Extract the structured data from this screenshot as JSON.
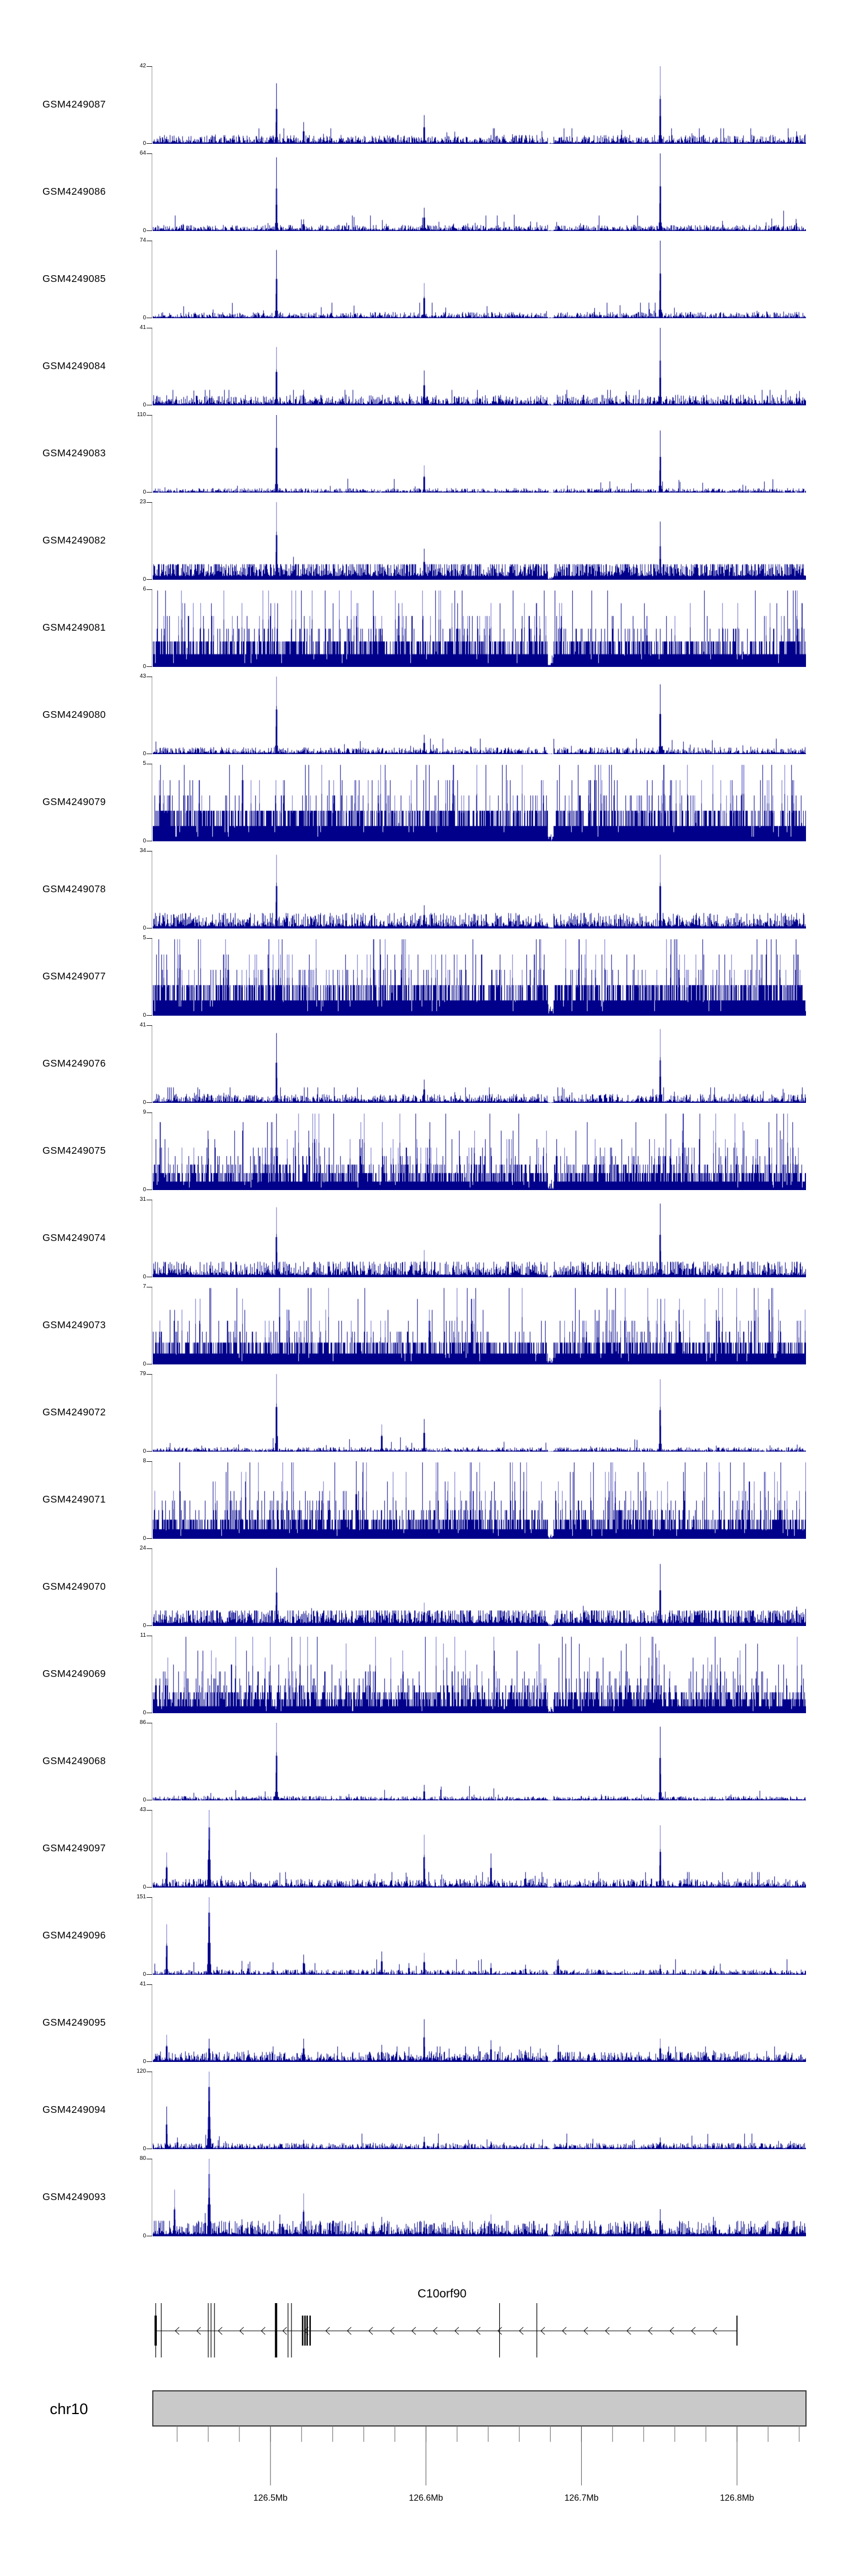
{
  "figure": {
    "title": "",
    "region_label": "chr10:126.42-126.84Mb"
  },
  "colors": {
    "signal": "#00008b",
    "signal_light": "#6b6bcc",
    "axis_line": "#999999",
    "axis_tick": "#1a1a1a",
    "ideogram_fill": "#c9c9c9",
    "ideogram_border": "#3a3a3a",
    "ruler_tick": "#7d7d7d",
    "text": "#000000"
  },
  "chart_data": {
    "type": "area",
    "subtype": "genome-coverage-tracks",
    "genome": {
      "chromosome": "chr10",
      "xlim_mb": [
        126.42436,
        126.84436
      ],
      "axis_ticks_mb": [
        126.5,
        126.6,
        126.7,
        126.8
      ],
      "axis_tick_labels": [
        "126.5Mb",
        "126.6Mb",
        "126.7Mb",
        "126.8Mb"
      ],
      "minor_tick_start_mb": 126.44,
      "minor_tick_step_mb": 0.02,
      "minor_tick_count": 21,
      "dip_mb": 126.68
    },
    "tracks": [
      {
        "sample": "GSM4249087",
        "ymax": 42,
        "ymin": 0,
        "style": "sparse",
        "noise_fill": 0.05,
        "peaks": [
          {
            "mb": 126.5036,
            "h": 0.78
          },
          {
            "mb": 126.521,
            "h": 0.28
          },
          {
            "mb": 126.5986,
            "h": 0.37
          },
          {
            "mb": 126.7504,
            "h": 1.0
          },
          {
            "mb": 126.8381,
            "h": 0.16
          }
        ]
      },
      {
        "sample": "GSM4249086",
        "ymax": 64,
        "ymin": 0,
        "style": "sparse",
        "noise_fill": 0.035,
        "peaks": [
          {
            "mb": 126.5036,
            "h": 0.95
          },
          {
            "mb": 126.521,
            "h": 0.15
          },
          {
            "mb": 126.5986,
            "h": 0.3
          },
          {
            "mb": 126.7504,
            "h": 1.0
          },
          {
            "mb": 126.8381,
            "h": 0.1
          }
        ]
      },
      {
        "sample": "GSM4249085",
        "ymax": 74,
        "ymin": 0,
        "style": "sparse",
        "noise_fill": 0.035,
        "peaks": [
          {
            "mb": 126.5036,
            "h": 0.88
          },
          {
            "mb": 126.5986,
            "h": 0.45
          },
          {
            "mb": 126.7504,
            "h": 1.0
          },
          {
            "mb": 126.8381,
            "h": 0.08
          }
        ]
      },
      {
        "sample": "GSM4249084",
        "ymax": 41,
        "ymin": 0,
        "style": "sparse",
        "noise_fill": 0.06,
        "peaks": [
          {
            "mb": 126.5036,
            "h": 0.75
          },
          {
            "mb": 126.521,
            "h": 0.2
          },
          {
            "mb": 126.5986,
            "h": 0.45
          },
          {
            "mb": 126.7504,
            "h": 1.0
          },
          {
            "mb": 126.8381,
            "h": 0.15
          }
        ]
      },
      {
        "sample": "GSM4249083",
        "ymax": 110,
        "ymin": 0,
        "style": "sparse",
        "noise_fill": 0.025,
        "peaks": [
          {
            "mb": 126.5036,
            "h": 1.0
          },
          {
            "mb": 126.5986,
            "h": 0.35
          },
          {
            "mb": 126.7504,
            "h": 0.8
          }
        ]
      },
      {
        "sample": "GSM4249082",
        "ymax": 23,
        "ymin": 0,
        "style": "sparse",
        "noise_fill": 0.16,
        "peaks": [
          {
            "mb": 126.5036,
            "h": 1.0
          },
          {
            "mb": 126.5986,
            "h": 0.4
          },
          {
            "mb": 126.7504,
            "h": 0.75
          },
          {
            "mb": 126.8381,
            "h": 0.2
          }
        ]
      },
      {
        "sample": "GSM4249081",
        "ymax": 6,
        "ymin": 0,
        "style": "dense",
        "noise_fill": 0.35,
        "peaks": []
      },
      {
        "sample": "GSM4249080",
        "ymax": 43,
        "ymin": 0,
        "style": "sparse",
        "noise_fill": 0.04,
        "peaks": [
          {
            "mb": 126.5036,
            "h": 1.0
          },
          {
            "mb": 126.5986,
            "h": 0.25
          },
          {
            "mb": 126.7504,
            "h": 0.9
          }
        ]
      },
      {
        "sample": "GSM4249079",
        "ymax": 5,
        "ymin": 0,
        "style": "dense",
        "noise_fill": 0.4,
        "peaks": []
      },
      {
        "sample": "GSM4249078",
        "ymax": 34,
        "ymin": 0,
        "style": "sparse",
        "noise_fill": 0.09,
        "peaks": [
          {
            "mb": 126.5036,
            "h": 0.95
          },
          {
            "mb": 126.5986,
            "h": 0.3
          },
          {
            "mb": 126.7504,
            "h": 0.95
          },
          {
            "mb": 126.8381,
            "h": 0.2
          }
        ]
      },
      {
        "sample": "GSM4249077",
        "ymax": 5,
        "ymin": 0,
        "style": "dense",
        "noise_fill": 0.45,
        "peaks": []
      },
      {
        "sample": "GSM4249076",
        "ymax": 41,
        "ymin": 0,
        "style": "sparse",
        "noise_fill": 0.05,
        "peaks": [
          {
            "mb": 126.5036,
            "h": 0.9
          },
          {
            "mb": 126.5986,
            "h": 0.3
          },
          {
            "mb": 126.7504,
            "h": 0.95
          }
        ]
      },
      {
        "sample": "GSM4249075",
        "ymax": 9,
        "ymin": 0,
        "style": "dense",
        "noise_fill": 0.35,
        "peaks": []
      },
      {
        "sample": "GSM4249074",
        "ymax": 31,
        "ymin": 0,
        "style": "sparse",
        "noise_fill": 0.1,
        "peaks": [
          {
            "mb": 126.5036,
            "h": 0.9
          },
          {
            "mb": 126.5986,
            "h": 0.35
          },
          {
            "mb": 126.7504,
            "h": 0.95
          },
          {
            "mb": 126.8381,
            "h": 0.2
          }
        ]
      },
      {
        "sample": "GSM4249073",
        "ymax": 7,
        "ymin": 0,
        "style": "dense",
        "noise_fill": 0.4,
        "peaks": []
      },
      {
        "sample": "GSM4249072",
        "ymax": 79,
        "ymin": 0,
        "style": "sparse",
        "noise_fill": 0.025,
        "peaks": [
          {
            "mb": 126.5036,
            "h": 1.0
          },
          {
            "mb": 126.5715,
            "h": 0.35
          },
          {
            "mb": 126.5986,
            "h": 0.42
          },
          {
            "mb": 126.7504,
            "h": 0.93
          }
        ]
      },
      {
        "sample": "GSM4249071",
        "ymax": 8,
        "ymin": 0,
        "style": "dense",
        "noise_fill": 0.35,
        "peaks": [
          {
            "mb": 126.555,
            "h": 1.0
          }
        ]
      },
      {
        "sample": "GSM4249070",
        "ymax": 24,
        "ymin": 0,
        "style": "sparse",
        "noise_fill": 0.13,
        "peaks": [
          {
            "mb": 126.5036,
            "h": 0.75
          },
          {
            "mb": 126.5986,
            "h": 0.3
          },
          {
            "mb": 126.7504,
            "h": 0.8
          },
          {
            "mb": 126.8381,
            "h": 0.25
          }
        ]
      },
      {
        "sample": "GSM4249069",
        "ymax": 11,
        "ymin": 0,
        "style": "dense",
        "noise_fill": 0.3,
        "peaks": []
      },
      {
        "sample": "GSM4249068",
        "ymax": 86,
        "ymin": 0,
        "style": "sparse",
        "noise_fill": 0.025,
        "peaks": [
          {
            "mb": 126.5036,
            "h": 1.0
          },
          {
            "mb": 126.5986,
            "h": 0.2
          },
          {
            "mb": 126.7504,
            "h": 0.95
          }
        ]
      },
      {
        "sample": "GSM4249097",
        "ymax": 43,
        "ymin": 0,
        "style": "sparse",
        "noise_fill": 0.05,
        "peaks": [
          {
            "mb": 126.4332,
            "h": 0.45
          },
          {
            "mb": 126.4604,
            "h": 1.0,
            "w": 1.4
          },
          {
            "mb": 126.4684,
            "h": 0.15
          },
          {
            "mb": 126.5036,
            "h": 0.1
          },
          {
            "mb": 126.5986,
            "h": 0.68
          },
          {
            "mb": 126.6418,
            "h": 0.44
          },
          {
            "mb": 126.664,
            "h": 0.2
          },
          {
            "mb": 126.7504,
            "h": 0.8
          },
          {
            "mb": 126.8053,
            "h": 0.1
          }
        ]
      },
      {
        "sample": "GSM4249096",
        "ymax": 151,
        "ymin": 0,
        "style": "sparse",
        "noise_fill": 0.03,
        "peaks": [
          {
            "mb": 126.4332,
            "h": 0.65
          },
          {
            "mb": 126.4604,
            "h": 1.0,
            "w": 1.5
          },
          {
            "mb": 126.4854,
            "h": 0.14
          },
          {
            "mb": 126.5211,
            "h": 0.26
          },
          {
            "mb": 126.5715,
            "h": 0.3
          },
          {
            "mb": 126.5889,
            "h": 0.15
          },
          {
            "mb": 126.5986,
            "h": 0.28
          },
          {
            "mb": 126.6418,
            "h": 0.15
          },
          {
            "mb": 126.664,
            "h": 0.13
          },
          {
            "mb": 126.6851,
            "h": 0.2
          },
          {
            "mb": 126.7504,
            "h": 0.13
          },
          {
            "mb": 126.7847,
            "h": 0.08
          }
        ]
      },
      {
        "sample": "GSM4249095",
        "ymax": 41,
        "ymin": 0,
        "style": "sparse",
        "noise_fill": 0.06,
        "peaks": [
          {
            "mb": 126.4332,
            "h": 0.35
          },
          {
            "mb": 126.4604,
            "h": 0.3
          },
          {
            "mb": 126.4854,
            "h": 0.15
          },
          {
            "mb": 126.5211,
            "h": 0.3
          },
          {
            "mb": 126.5715,
            "h": 0.22
          },
          {
            "mb": 126.5986,
            "h": 0.55
          },
          {
            "mb": 126.6418,
            "h": 0.28
          },
          {
            "mb": 126.664,
            "h": 0.15
          },
          {
            "mb": 126.6851,
            "h": 0.22
          },
          {
            "mb": 126.7504,
            "h": 0.3
          },
          {
            "mb": 126.7847,
            "h": 0.15
          }
        ]
      },
      {
        "sample": "GSM4249094",
        "ymax": 120,
        "ymin": 0,
        "style": "sparse",
        "noise_fill": 0.035,
        "peaks": [
          {
            "mb": 126.4332,
            "h": 0.55
          },
          {
            "mb": 126.44,
            "h": 0.15
          },
          {
            "mb": 126.4604,
            "h": 1.0,
            "w": 1.5
          },
          {
            "mb": 126.5211,
            "h": 0.12
          },
          {
            "mb": 126.5986,
            "h": 0.16
          },
          {
            "mb": 126.6418,
            "h": 0.1
          },
          {
            "mb": 126.7504,
            "h": 0.15
          },
          {
            "mb": 126.7847,
            "h": 0.08
          }
        ]
      },
      {
        "sample": "GSM4249093",
        "ymax": 80,
        "ymin": 0,
        "style": "sparse",
        "noise_fill": 0.09,
        "peaks": [
          {
            "mb": 126.4382,
            "h": 0.6
          },
          {
            "mb": 126.458,
            "h": 0.3
          },
          {
            "mb": 126.4604,
            "h": 1.0,
            "w": 1.5
          },
          {
            "mb": 126.4816,
            "h": 0.22
          },
          {
            "mb": 126.5058,
            "h": 0.28
          },
          {
            "mb": 126.5211,
            "h": 0.55
          },
          {
            "mb": 126.5715,
            "h": 0.25
          },
          {
            "mb": 126.5986,
            "h": 0.2
          },
          {
            "mb": 126.6418,
            "h": 0.28
          },
          {
            "mb": 126.664,
            "h": 0.16
          },
          {
            "mb": 126.7504,
            "h": 0.35
          },
          {
            "mb": 126.7847,
            "h": 0.25
          },
          {
            "mb": 126.8367,
            "h": 0.2
          }
        ]
      }
    ],
    "gene": {
      "name": "C10orf90",
      "strand": "-",
      "span_mb": [
        126.4262,
        126.8
      ],
      "exons": [
        {
          "mb": 126.4262,
          "style": "short",
          "w": 4
        },
        {
          "mb": 126.4262,
          "style": "tall",
          "w": 1.2
        },
        {
          "mb": 126.4298,
          "style": "tall",
          "w": 1.2
        },
        {
          "mb": 126.46,
          "style": "tall",
          "w": 1.2
        },
        {
          "mb": 126.4618,
          "style": "tall",
          "w": 1.2
        },
        {
          "mb": 126.464,
          "style": "tall",
          "w": 1.2
        },
        {
          "mb": 126.5036,
          "style": "tall",
          "w": 4
        },
        {
          "mb": 126.5113,
          "style": "tall",
          "w": 1.2
        },
        {
          "mb": 126.5135,
          "style": "tall",
          "w": 1.2
        },
        {
          "mb": 126.5207,
          "style": "short",
          "w": 2.5
        },
        {
          "mb": 126.5222,
          "style": "short",
          "w": 2.5
        },
        {
          "mb": 126.5236,
          "style": "short",
          "w": 2.5
        },
        {
          "mb": 126.5255,
          "style": "short",
          "w": 2.5
        },
        {
          "mb": 126.6473,
          "style": "tall",
          "w": 1.2
        },
        {
          "mb": 126.6713,
          "style": "tall",
          "w": 1.2
        },
        {
          "mb": 126.8,
          "style": "short",
          "w": 1.8
        }
      ]
    },
    "ideogram": {
      "label": "chr10"
    }
  }
}
